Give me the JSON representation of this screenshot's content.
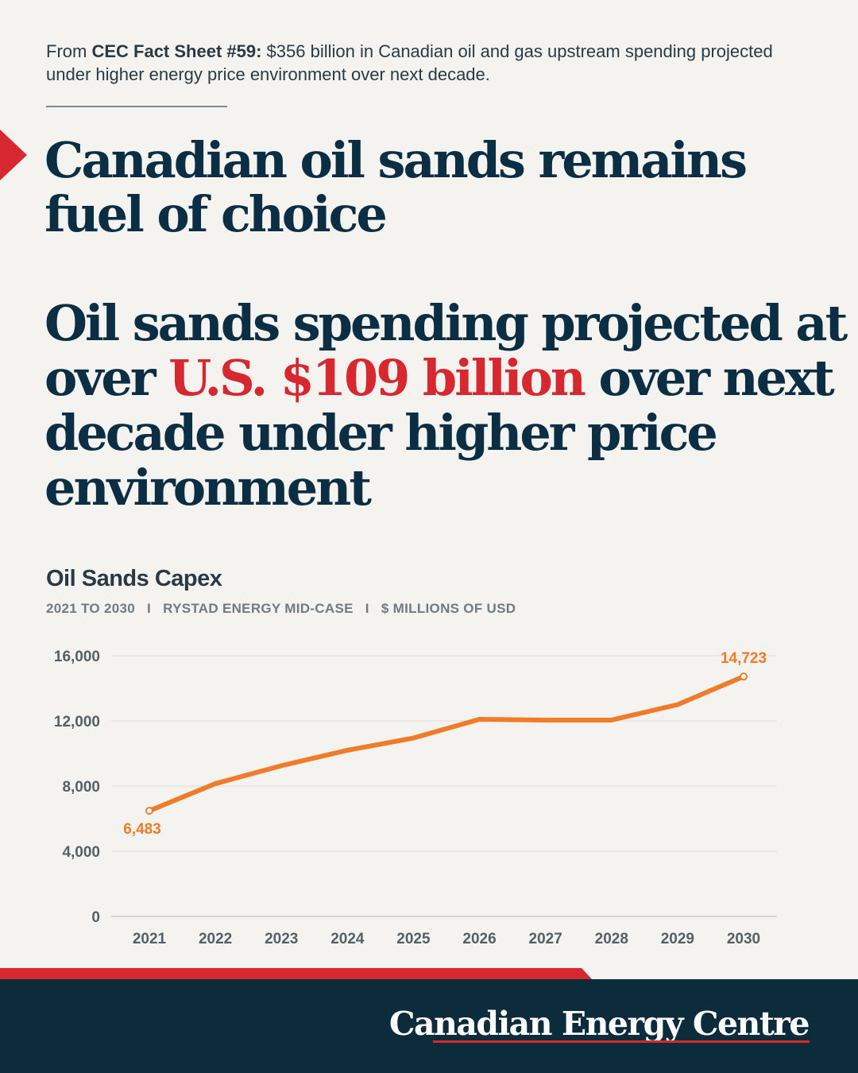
{
  "intro": {
    "prefix": "From ",
    "source_bold": "CEC Fact Sheet #59:",
    "text": " $356 billion in Canadian oil and gas upstream spending projected under higher energy price environment over next decade."
  },
  "headline1": "Canadian oil sands remains fuel of choice",
  "headline2": {
    "part1": "Oil sands spending projected at over ",
    "highlight": "U.S. $109 billion",
    "part2": " over next decade under higher price environment"
  },
  "chart_title": "Oil Sands Capex",
  "chart_subtitle": "2021 TO 2030   I   RYSTAD ENERGY MID-CASE   I   $ MILLIONS OF USD",
  "brand": "Canadian Energy Centre",
  "colors": {
    "navy": "#0b2e44",
    "red": "#d7282f",
    "orange": "#f07c2a"
  },
  "chart_data": {
    "type": "line",
    "title": "Oil Sands Capex",
    "x": [
      "2021",
      "2022",
      "2023",
      "2024",
      "2025",
      "2026",
      "2027",
      "2028",
      "2029",
      "2030"
    ],
    "series": [
      {
        "values": [
          6483,
          8150,
          9250,
          10200,
          10950,
          12100,
          12050,
          12050,
          13000,
          14723
        ],
        "color": "#f07c2a"
      }
    ],
    "ylim": [
      0,
      16000
    ],
    "yticks": [
      0,
      4000,
      8000,
      12000,
      16000
    ],
    "ytick_labels": [
      "0",
      "4,000",
      "8,000",
      "12,000",
      "16,000"
    ],
    "grid": true,
    "annotations": [
      {
        "x": "2021",
        "label": "6,483",
        "position": "below"
      },
      {
        "x": "2030",
        "label": "14,723",
        "position": "above"
      }
    ]
  }
}
